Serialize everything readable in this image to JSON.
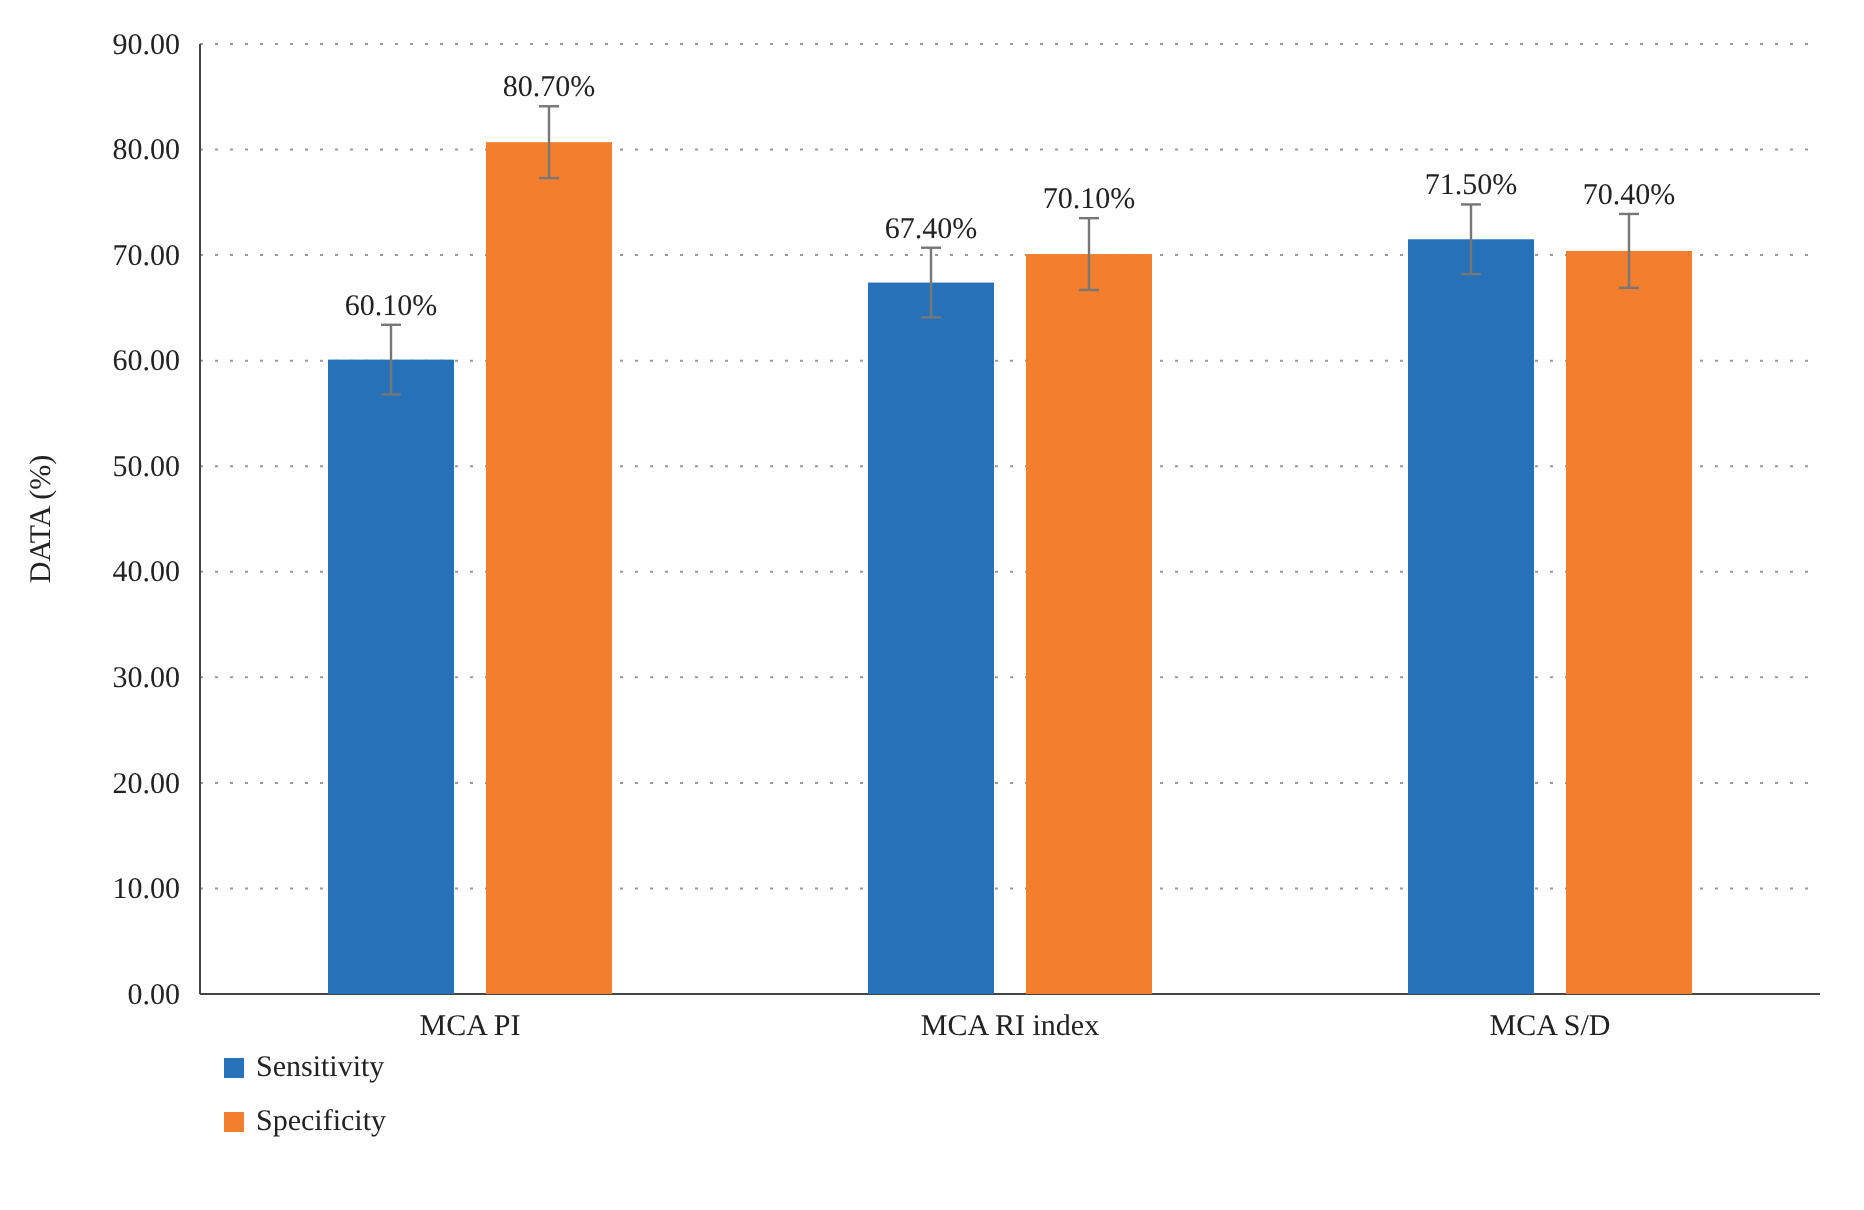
{
  "chart_data": {
    "type": "bar",
    "ylabel": "DATA (%)",
    "categories": [
      "MCA PI",
      "MCA RI index",
      "MCA S/D"
    ],
    "series": [
      {
        "name": "Sensitivity",
        "color": "#2671b8",
        "values": [
          60.1,
          67.4,
          71.5
        ],
        "errors": [
          3.3,
          3.3,
          3.3
        ],
        "value_labels": [
          "60.10%",
          "67.40%",
          "71.50%"
        ]
      },
      {
        "name": "Specificity",
        "color": "#f37e2e",
        "values": [
          80.7,
          70.1,
          70.4
        ],
        "errors": [
          3.4,
          3.4,
          3.5
        ],
        "value_labels": [
          "80.70%",
          "70.10%",
          "70.40%"
        ]
      }
    ],
    "ylim": [
      0,
      90
    ],
    "yticks": [
      {
        "value": 0,
        "label": "0.00"
      },
      {
        "value": 10,
        "label": "10.00"
      },
      {
        "value": 20,
        "label": "20.00"
      },
      {
        "value": 30,
        "label": "30.00"
      },
      {
        "value": 40,
        "label": "40.00"
      },
      {
        "value": 50,
        "label": "50.00"
      },
      {
        "value": 60,
        "label": "60.00"
      },
      {
        "value": 70,
        "label": "70.00"
      },
      {
        "value": 80,
        "label": "80.00"
      },
      {
        "value": 90,
        "label": "90.00"
      }
    ],
    "grid": "y",
    "legend": "bottom left"
  }
}
